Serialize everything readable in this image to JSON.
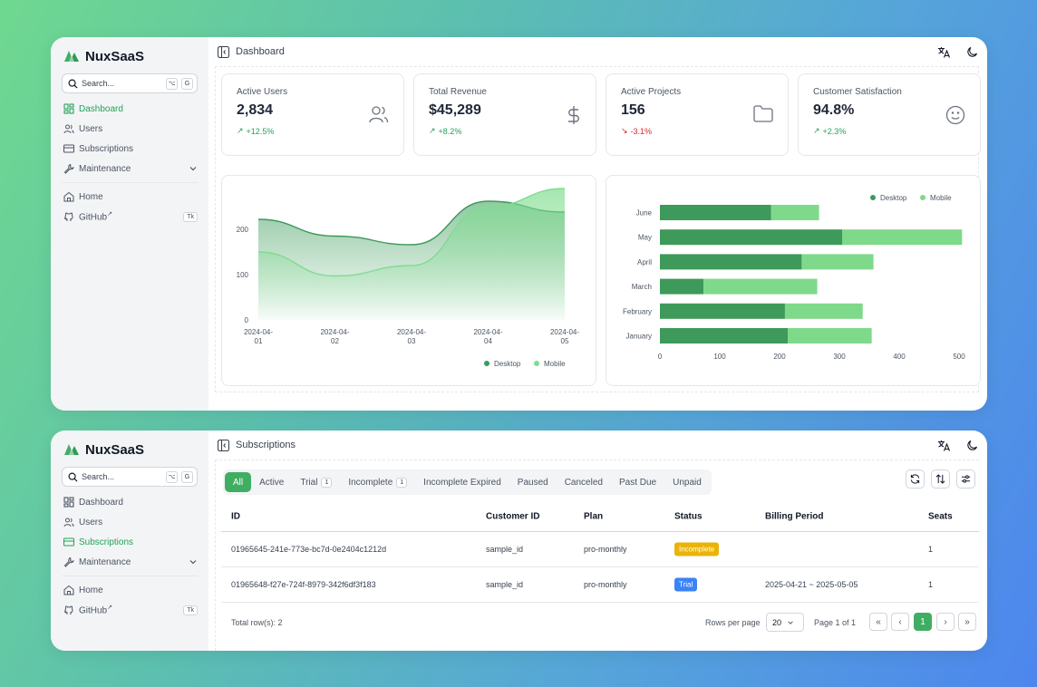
{
  "brand": {
    "name": "NuxSaaS",
    "color": "#3fae63"
  },
  "search": {
    "placeholder": "Search...",
    "kbd1": "⌥",
    "kbd2": "G"
  },
  "nav": {
    "dashboard": "Dashboard",
    "users": "Users",
    "subscriptions": "Subscriptions",
    "maintenance": "Maintenance",
    "home": "Home",
    "github": "GitHub",
    "github_badge": "Tk"
  },
  "dashboard": {
    "title": "Dashboard",
    "stats": [
      {
        "title": "Active Users",
        "value": "2,834",
        "change": "+12.5%",
        "trend": "up",
        "icon": "users-icon"
      },
      {
        "title": "Total Revenue",
        "value": "$45,289",
        "change": "+8.2%",
        "trend": "up",
        "icon": "dollar-icon"
      },
      {
        "title": "Active Projects",
        "value": "156",
        "change": "-3.1%",
        "trend": "down",
        "icon": "folder-icon"
      },
      {
        "title": "Customer Satisfaction",
        "value": "94.8%",
        "change": "+2.3%",
        "trend": "up",
        "icon": "smile-icon"
      }
    ]
  },
  "chart_data": [
    {
      "type": "area",
      "x": [
        "2024-04-01",
        "2024-04-02",
        "2024-04-03",
        "2024-04-04",
        "2024-04-05"
      ],
      "x_tick_labels": [
        [
          "2024-04-",
          "01"
        ],
        [
          "2024-04-",
          "02"
        ],
        [
          "2024-04-",
          "03"
        ],
        [
          "2024-04-",
          "04"
        ],
        [
          "2024-04-",
          "05"
        ]
      ],
      "series": [
        {
          "name": "Desktop",
          "values": [
            222,
            185,
            166,
            262,
            238
          ],
          "color": "#3a9a58"
        },
        {
          "name": "Mobile",
          "values": [
            150,
            97,
            120,
            250,
            290
          ],
          "color": "#7fdc8f"
        }
      ],
      "yticks": [
        0,
        100,
        200
      ],
      "ylim": [
        0,
        300
      ],
      "legend": "bottom"
    },
    {
      "type": "bar",
      "orientation": "horizontal",
      "stacked": true,
      "categories": [
        "June",
        "May",
        "April",
        "March",
        "February",
        "January"
      ],
      "series": [
        {
          "name": "Desktop",
          "values": [
            186,
            305,
            237,
            73,
            209,
            214
          ],
          "color": "#3e9a5a"
        },
        {
          "name": "Mobile",
          "values": [
            80,
            200,
            120,
            190,
            130,
            140
          ],
          "color": "#7fd98a"
        }
      ],
      "xticks": [
        0,
        100,
        200,
        300,
        400,
        500
      ],
      "xlim": [
        0,
        500
      ],
      "legend": "top-right"
    }
  ],
  "subscriptions": {
    "title": "Subscriptions",
    "tabs": [
      {
        "label": "All"
      },
      {
        "label": "Active"
      },
      {
        "label": "Trial",
        "count": "1"
      },
      {
        "label": "Incomplete",
        "count": "1"
      },
      {
        "label": "Incomplete Expired"
      },
      {
        "label": "Paused"
      },
      {
        "label": "Canceled"
      },
      {
        "label": "Past Due"
      },
      {
        "label": "Unpaid"
      }
    ],
    "columns": [
      "ID",
      "Customer ID",
      "Plan",
      "Status",
      "Billing Period",
      "Seats"
    ],
    "rows": [
      {
        "id": "01965645-241e-773e-bc7d-0e2404c1212d",
        "customer": "sample_id",
        "plan": "pro-monthly",
        "status": "Incomplete",
        "status_color": "#eab308",
        "period": "",
        "seats": "1"
      },
      {
        "id": "01965648-f27e-724f-8979-342f6df3f183",
        "customer": "sample_id",
        "plan": "pro-monthly",
        "status": "Trial",
        "status_color": "#3b82f6",
        "period": "2025-04-21 ~ 2025-05-05",
        "seats": "1"
      }
    ],
    "footer": {
      "total": "Total row(s): 2",
      "rows_per_page_label": "Rows per page",
      "rows_per_page": "20",
      "page_info": "Page 1 of 1",
      "current_page": "1"
    }
  }
}
